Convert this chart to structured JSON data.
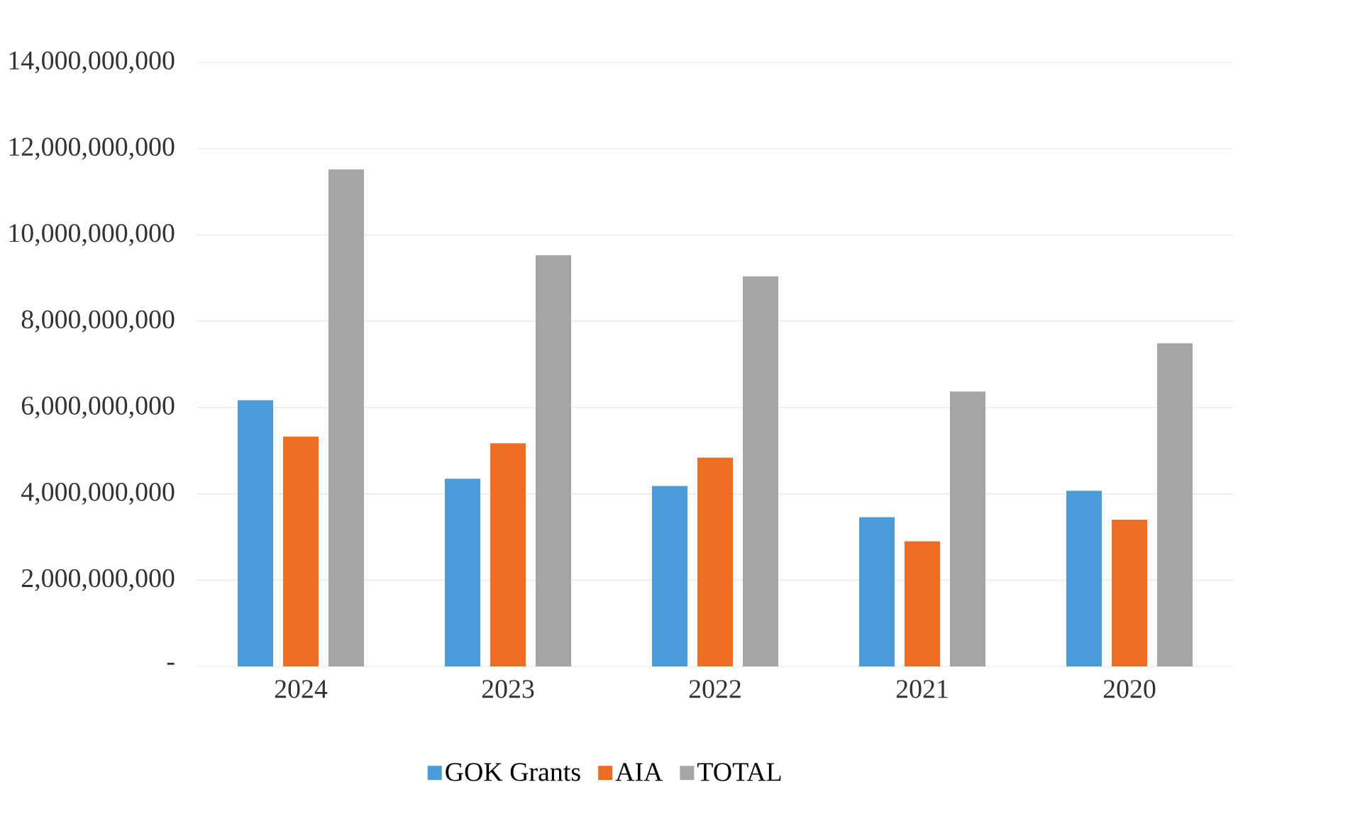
{
  "chart_data": {
    "type": "bar",
    "categories": [
      "2024",
      "2023",
      "2022",
      "2021",
      "2020"
    ],
    "series": [
      {
        "name": "GOK Grants",
        "color": "#4a9bd8",
        "values": [
          6170000000,
          4350000000,
          4180000000,
          3460000000,
          4070000000
        ]
      },
      {
        "name": "AIA",
        "color": "#ed6d22",
        "values": [
          5330000000,
          5170000000,
          4840000000,
          2900000000,
          3400000000
        ]
      },
      {
        "name": "TOTAL",
        "color": "#a5a5a8",
        "values": [
          11520000000,
          9530000000,
          9040000000,
          6370000000,
          7490000000
        ]
      }
    ],
    "ylim": [
      0,
      14000000000
    ],
    "yticks": [
      {
        "value": 0,
        "label": "-"
      },
      {
        "value": 2000000000,
        "label": "2,000,000,000"
      },
      {
        "value": 4000000000,
        "label": "4,000,000,000"
      },
      {
        "value": 6000000000,
        "label": "6,000,000,000"
      },
      {
        "value": 8000000000,
        "label": "8,000,000,000"
      },
      {
        "value": 10000000000,
        "label": "10,000,000,000"
      },
      {
        "value": 12000000000,
        "label": "12,000,000,000"
      },
      {
        "value": 14000000000,
        "label": "14,000,000,000"
      }
    ],
    "grid": "y",
    "legend": "bottom"
  }
}
